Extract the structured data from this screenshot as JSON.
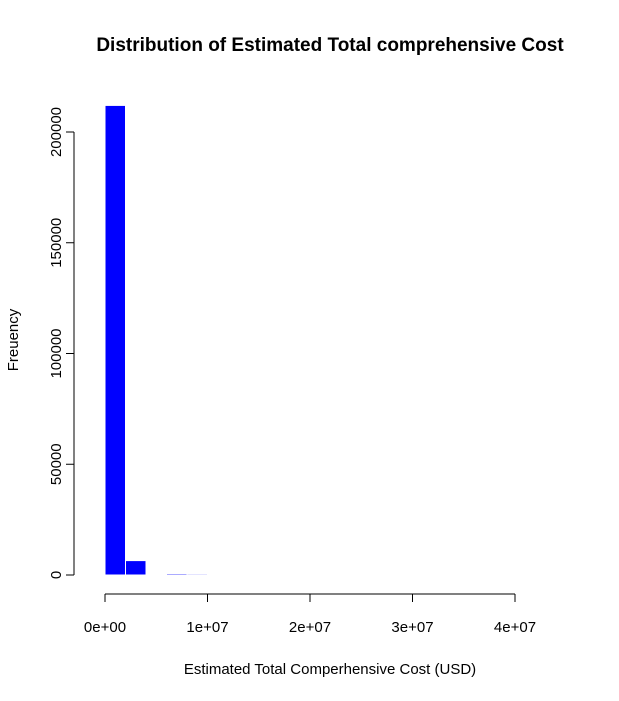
{
  "chart_data": {
    "type": "bar",
    "title": "Distribution of Estimated Total comprehensive Cost",
    "xlabel": "Estimated Total Comperhensive Cost (USD)",
    "ylabel": "Freuency",
    "bin_width": 2000000,
    "bins": [
      {
        "start": 0,
        "end": 2000000,
        "count": 212000
      },
      {
        "start": 2000000,
        "end": 4000000,
        "count": 6500
      },
      {
        "start": 4000000,
        "end": 6000000,
        "count": 200
      },
      {
        "start": 6000000,
        "end": 8000000,
        "count": 600
      },
      {
        "start": 8000000,
        "end": 10000000,
        "count": 500
      },
      {
        "start": 10000000,
        "end": 12000000,
        "count": 200
      },
      {
        "start": 12000000,
        "end": 14000000,
        "count": 80
      },
      {
        "start": 14000000,
        "end": 16000000,
        "count": 40
      }
    ],
    "xlim": [
      0,
      40000000
    ],
    "ylim": [
      0,
      212000
    ],
    "x_ticks": [
      0,
      10000000,
      20000000,
      30000000,
      40000000
    ],
    "x_tick_labels": [
      "0e+00",
      "1e+07",
      "2e+07",
      "3e+07",
      "4e+07"
    ],
    "y_ticks": [
      0,
      50000,
      100000,
      150000,
      200000
    ],
    "y_tick_labels": [
      "0",
      "50000",
      "100000",
      "150000",
      "200000"
    ],
    "bar_color": "#0000ff",
    "bar_border_color": "#ffffff",
    "grid": false,
    "legend": "none"
  }
}
